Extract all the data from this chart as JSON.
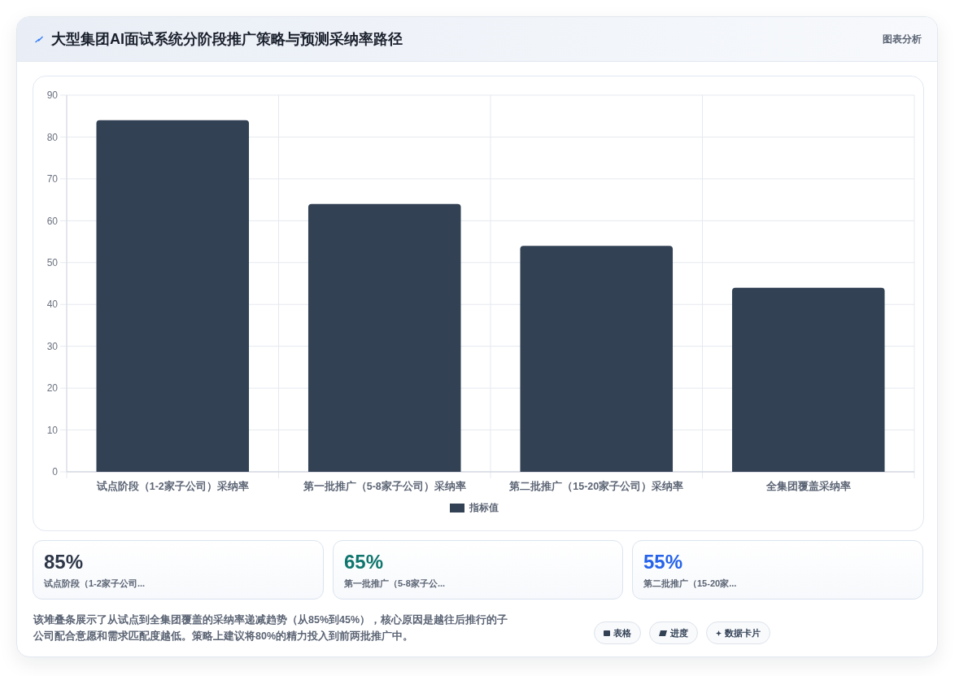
{
  "chart_data": {
    "type": "bar",
    "title": "大型集团AI面试系统分阶段推广策略与预测采纳率路径",
    "categories": [
      "试点阶段（1-2家子公司）采纳率",
      "第一批推广（5-8家子公司）采纳率",
      "第二批推广（15-20家子公司）采纳率",
      "全集团覆盖采纳率"
    ],
    "series": [
      {
        "name": "指标值",
        "color": "#334155",
        "values": [
          84,
          64,
          54,
          44
        ]
      }
    ],
    "ylim": [
      0,
      90
    ],
    "yticks": [
      0,
      10,
      20,
      30,
      40,
      50,
      60,
      70,
      80,
      90
    ],
    "grid": true,
    "legend": "bottom",
    "annotations": [
      "图表分析",
      "85%",
      "试点阶段（1-2家子公司...",
      "65%",
      "第一批推广（5-8家子公...",
      "55%",
      "第二批推广（15-20家...",
      "该堆叠条展示了从试点到全集团覆盖的采纳率递减趋势（从85%到45%），核心原因是越往后推行的子公司配合意愿和需求匹配度越低。策略上建议将80%的精力投入到前两批推广中。",
      "表格",
      "进度",
      "数据卡片"
    ]
  }
}
